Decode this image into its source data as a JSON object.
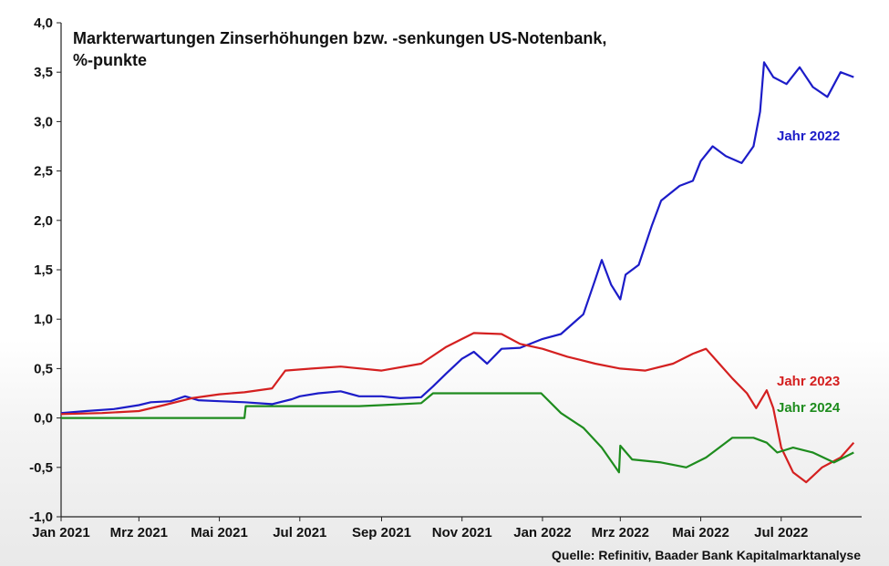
{
  "chart_data": {
    "type": "line",
    "title": "Markterwartungen Zinserhöhungen bzw. -senkungen US-Notenbank,",
    "subtitle": "%-punkte",
    "source": "Quelle: Refinitiv, Baader Bank Kapitalmarktanalyse",
    "ylim": [
      -1.0,
      4.0
    ],
    "y_ticks": [
      "4,0",
      "3,5",
      "3,0",
      "2,5",
      "2,0",
      "1,5",
      "1,0",
      "0,5",
      "0,0",
      "-0,5",
      "-1,0"
    ],
    "y_tick_values": [
      4.0,
      3.5,
      3.0,
      2.5,
      2.0,
      1.5,
      1.0,
      0.5,
      0.0,
      -0.5,
      -1.0
    ],
    "x_ticks": [
      "Jan 2021",
      "Mrz 2021",
      "Mai 2021",
      "Jul 2021",
      "Sep 2021",
      "Nov 2021",
      "Jan 2022",
      "Mrz 2022",
      "Mai 2022",
      "Jul 2022"
    ],
    "x_tick_values": [
      "2021-01-01",
      "2021-03-01",
      "2021-05-01",
      "2021-07-01",
      "2021-09-01",
      "2021-11-01",
      "2022-01-01",
      "2022-03-01",
      "2022-05-01",
      "2022-07-01"
    ],
    "xlim": [
      "2021-01-01",
      "2022-08-31"
    ],
    "grid": false,
    "series": [
      {
        "name": "Jahr 2022",
        "color": "#1c1cc8",
        "points": [
          [
            "2021-01-01",
            0.05
          ],
          [
            "2021-01-20",
            0.07
          ],
          [
            "2021-02-10",
            0.09
          ],
          [
            "2021-03-01",
            0.13
          ],
          [
            "2021-03-10",
            0.16
          ],
          [
            "2021-03-25",
            0.17
          ],
          [
            "2021-04-05",
            0.22
          ],
          [
            "2021-04-15",
            0.18
          ],
          [
            "2021-05-01",
            0.17
          ],
          [
            "2021-05-20",
            0.16
          ],
          [
            "2021-06-10",
            0.14
          ],
          [
            "2021-06-25",
            0.19
          ],
          [
            "2021-07-01",
            0.22
          ],
          [
            "2021-07-15",
            0.25
          ],
          [
            "2021-08-01",
            0.27
          ],
          [
            "2021-08-15",
            0.22
          ],
          [
            "2021-09-01",
            0.22
          ],
          [
            "2021-09-15",
            0.2
          ],
          [
            "2021-10-01",
            0.21
          ],
          [
            "2021-10-10",
            0.32
          ],
          [
            "2021-10-20",
            0.45
          ],
          [
            "2021-11-01",
            0.6
          ],
          [
            "2021-11-10",
            0.67
          ],
          [
            "2021-11-20",
            0.55
          ],
          [
            "2021-12-01",
            0.7
          ],
          [
            "2021-12-15",
            0.71
          ],
          [
            "2022-01-01",
            0.8
          ],
          [
            "2022-01-15",
            0.85
          ],
          [
            "2022-02-01",
            1.05
          ],
          [
            "2022-02-10",
            1.4
          ],
          [
            "2022-02-15",
            1.6
          ],
          [
            "2022-02-22",
            1.35
          ],
          [
            "2022-03-01",
            1.2
          ],
          [
            "2022-03-05",
            1.45
          ],
          [
            "2022-03-15",
            1.55
          ],
          [
            "2022-03-25",
            1.95
          ],
          [
            "2022-04-01",
            2.2
          ],
          [
            "2022-04-15",
            2.35
          ],
          [
            "2022-04-25",
            2.4
          ],
          [
            "2022-05-01",
            2.6
          ],
          [
            "2022-05-10",
            2.75
          ],
          [
            "2022-05-20",
            2.65
          ],
          [
            "2022-06-01",
            2.58
          ],
          [
            "2022-06-10",
            2.75
          ],
          [
            "2022-06-15",
            3.1
          ],
          [
            "2022-06-18",
            3.6
          ],
          [
            "2022-06-25",
            3.45
          ],
          [
            "2022-07-05",
            3.38
          ],
          [
            "2022-07-15",
            3.55
          ],
          [
            "2022-07-25",
            3.35
          ],
          [
            "2022-08-05",
            3.25
          ],
          [
            "2022-08-15",
            3.5
          ],
          [
            "2022-08-25",
            3.45
          ]
        ]
      },
      {
        "name": "Jahr 2023",
        "color": "#d42020",
        "points": [
          [
            "2021-01-01",
            0.04
          ],
          [
            "2021-02-01",
            0.05
          ],
          [
            "2021-03-01",
            0.07
          ],
          [
            "2021-03-20",
            0.13
          ],
          [
            "2021-04-10",
            0.2
          ],
          [
            "2021-05-01",
            0.24
          ],
          [
            "2021-05-20",
            0.26
          ],
          [
            "2021-06-10",
            0.3
          ],
          [
            "2021-06-20",
            0.48
          ],
          [
            "2021-07-10",
            0.5
          ],
          [
            "2021-08-01",
            0.52
          ],
          [
            "2021-09-01",
            0.48
          ],
          [
            "2021-10-01",
            0.55
          ],
          [
            "2021-10-20",
            0.72
          ],
          [
            "2021-11-01",
            0.8
          ],
          [
            "2021-11-10",
            0.86
          ],
          [
            "2021-12-01",
            0.85
          ],
          [
            "2021-12-15",
            0.75
          ],
          [
            "2022-01-01",
            0.7
          ],
          [
            "2022-01-20",
            0.62
          ],
          [
            "2022-02-10",
            0.55
          ],
          [
            "2022-03-01",
            0.5
          ],
          [
            "2022-03-20",
            0.48
          ],
          [
            "2022-04-10",
            0.55
          ],
          [
            "2022-04-25",
            0.65
          ],
          [
            "2022-05-05",
            0.7
          ],
          [
            "2022-05-15",
            0.55
          ],
          [
            "2022-05-25",
            0.4
          ],
          [
            "2022-06-05",
            0.25
          ],
          [
            "2022-06-12",
            0.1
          ],
          [
            "2022-06-20",
            0.28
          ],
          [
            "2022-06-25",
            0.1
          ],
          [
            "2022-07-01",
            -0.3
          ],
          [
            "2022-07-10",
            -0.55
          ],
          [
            "2022-07-20",
            -0.65
          ],
          [
            "2022-08-01",
            -0.5
          ],
          [
            "2022-08-15",
            -0.4
          ],
          [
            "2022-08-25",
            -0.25
          ]
        ]
      },
      {
        "name": "Jahr 2024",
        "color": "#1e8c1e",
        "points": [
          [
            "2021-01-01",
            0.0
          ],
          [
            "2021-05-20",
            0.0
          ],
          [
            "2021-05-21",
            0.12
          ],
          [
            "2021-08-15",
            0.12
          ],
          [
            "2021-09-01",
            0.13
          ],
          [
            "2021-10-01",
            0.15
          ],
          [
            "2021-10-10",
            0.25
          ],
          [
            "2021-12-31",
            0.25
          ],
          [
            "2022-01-15",
            0.05
          ],
          [
            "2022-02-01",
            -0.1
          ],
          [
            "2022-02-15",
            -0.3
          ],
          [
            "2022-02-28",
            -0.55
          ],
          [
            "2022-03-01",
            -0.28
          ],
          [
            "2022-03-10",
            -0.42
          ],
          [
            "2022-04-01",
            -0.45
          ],
          [
            "2022-04-20",
            -0.5
          ],
          [
            "2022-05-05",
            -0.4
          ],
          [
            "2022-05-15",
            -0.3
          ],
          [
            "2022-05-25",
            -0.2
          ],
          [
            "2022-06-10",
            -0.2
          ],
          [
            "2022-06-20",
            -0.25
          ],
          [
            "2022-06-28",
            -0.35
          ],
          [
            "2022-07-10",
            -0.3
          ],
          [
            "2022-07-25",
            -0.35
          ],
          [
            "2022-08-10",
            -0.45
          ],
          [
            "2022-08-25",
            -0.35
          ]
        ]
      }
    ]
  }
}
